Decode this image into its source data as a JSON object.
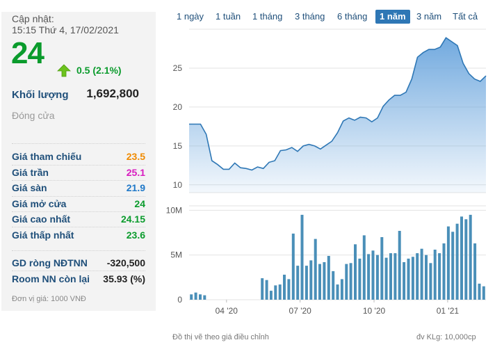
{
  "info": {
    "update_label": "Cập nhật:",
    "update_time": "15:15 Thứ 4, 17/02/2021",
    "price": "24",
    "change": "0.5 (2.1%)",
    "volume_label": "Khối lượng",
    "volume_value": "1,692,800",
    "close_label": "Đóng cửa",
    "rows": [
      {
        "label": "Giá tham chiếu",
        "value": "23.5",
        "color": "#f08a00"
      },
      {
        "label": "Giá trần",
        "value": "25.1",
        "color": "#d81bbf"
      },
      {
        "label": "Giá sàn",
        "value": "21.9",
        "color": "#1f78c8"
      },
      {
        "label": "Giá mở cửa",
        "value": "24",
        "color": "#0a9b2c"
      },
      {
        "label": "Giá cao nhất",
        "value": "24.15",
        "color": "#0a9b2c"
      },
      {
        "label": "Giá thấp nhất",
        "value": "23.6",
        "color": "#0a9b2c"
      }
    ],
    "foreign_rows": [
      {
        "label": "GD ròng NĐTNN",
        "value": "-320,500"
      },
      {
        "label": "Room NN còn lại",
        "value": "35.93 (%)"
      }
    ],
    "unit_note": "Đơn vị giá: 1000 VNĐ"
  },
  "ranges": [
    "1 ngày",
    "1 tuần",
    "1 tháng",
    "3 tháng",
    "6 tháng",
    "1 năm",
    "3 năm",
    "Tất cả"
  ],
  "active_range": "1 năm",
  "footer": {
    "left": "Đồ thị vẽ theo giá điều chỉnh",
    "right": "đv KLg: 10,000cp"
  },
  "chart_data": {
    "type": "area",
    "price": {
      "ylim": [
        9,
        30
      ],
      "yticks": [
        10,
        15,
        20,
        25
      ],
      "values": [
        17.8,
        17.8,
        17.8,
        16.5,
        13.1,
        12.6,
        12.0,
        12.0,
        12.8,
        12.2,
        12.1,
        11.9,
        12.3,
        12.1,
        12.9,
        13.1,
        14.4,
        14.5,
        14.8,
        14.3,
        15.0,
        15.2,
        15.0,
        14.6,
        15.1,
        15.6,
        16.7,
        18.2,
        18.6,
        18.3,
        18.7,
        18.6,
        18.1,
        18.6,
        20.1,
        20.9,
        21.5,
        21.5,
        21.9,
        23.6,
        26.4,
        27.0,
        27.4,
        27.4,
        27.7,
        28.9,
        28.4,
        27.9,
        25.6,
        24.3,
        23.6,
        23.3,
        24.0
      ]
    },
    "volume": {
      "ylim": [
        0,
        10.5
      ],
      "yticks": [
        0,
        5,
        10
      ],
      "ytick_labels": [
        "0",
        "5M",
        "10M"
      ],
      "values": [
        0.6,
        0.8,
        0.6,
        0.5,
        0,
        0,
        0,
        0,
        0,
        0,
        0,
        0,
        0,
        0,
        0,
        0,
        2.4,
        2.2,
        1.0,
        1.6,
        1.7,
        2.8,
        2.3,
        7.4,
        3.8,
        9.5,
        3.8,
        4.4,
        6.8,
        4.0,
        4.2,
        4.9,
        3.2,
        1.7,
        2.3,
        4.0,
        4.1,
        6.2,
        4.6,
        7.2,
        5.1,
        5.5,
        5.0,
        7.0,
        4.7,
        5.2,
        5.2,
        7.7,
        4.2,
        4.6,
        4.8,
        5.2,
        5.7,
        5.0,
        4.1,
        5.6,
        5.2,
        6.3,
        8.2,
        7.6,
        8.5,
        9.3,
        9.0,
        9.5,
        6.3,
        1.8,
        1.5
      ]
    },
    "x_tick_labels": [
      "04 '20",
      "07 '20",
      "10 '20",
      "01 '21"
    ],
    "x_tick_positions": [
      0.126,
      0.374,
      0.623,
      0.871
    ],
    "line_color": "#2e77b5",
    "area_color": "#6aa5dd",
    "bar_color": "#4a8fb8"
  }
}
